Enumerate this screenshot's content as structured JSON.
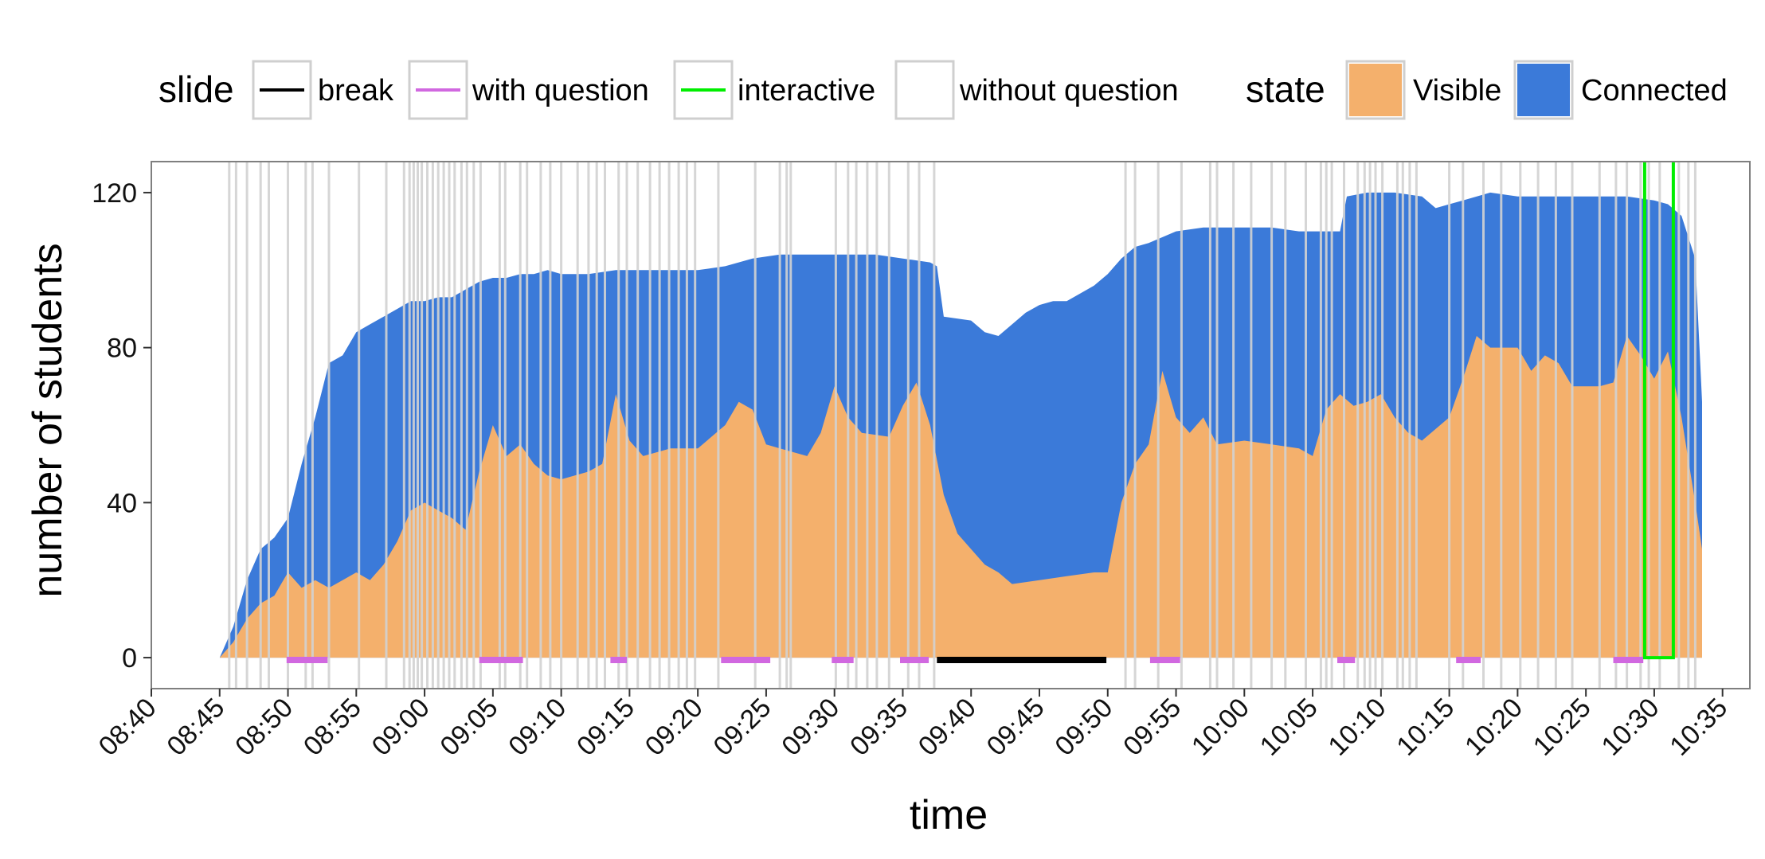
{
  "chart_data": {
    "type": "area",
    "xlabel": "time",
    "ylabel": "number of students",
    "xlim": [
      "08:40",
      "10:37"
    ],
    "ylim": [
      -8,
      128
    ],
    "x_ticks": [
      "08:40",
      "08:45",
      "08:50",
      "08:55",
      "09:00",
      "09:05",
      "09:10",
      "09:15",
      "09:20",
      "09:25",
      "09:30",
      "09:35",
      "09:40",
      "09:45",
      "09:50",
      "09:55",
      "10:00",
      "10:05",
      "10:10",
      "10:15",
      "10:20",
      "10:25",
      "10:30",
      "10:35"
    ],
    "y_ticks": [
      0,
      40,
      80,
      120
    ],
    "grid": false,
    "legend": {
      "position": "top",
      "groups": [
        {
          "title": "slide",
          "entries": [
            {
              "label": "break",
              "color": "#000000",
              "kind": "line"
            },
            {
              "label": "with question",
              "color": "#d168e0",
              "kind": "line"
            },
            {
              "label": "interactive",
              "color": "#00ee00",
              "kind": "line"
            },
            {
              "label": "without question",
              "color": "#ffffff",
              "kind": "line"
            }
          ]
        },
        {
          "title": "state",
          "entries": [
            {
              "label": "Visible",
              "color": "#f4b06c",
              "kind": "fill"
            },
            {
              "label": "Connected",
              "color": "#3b7ad9",
              "kind": "fill"
            }
          ]
        }
      ]
    },
    "series": [
      {
        "name": "Connected",
        "color": "#3b7ad9",
        "points": [
          [
            "08:45",
            0
          ],
          [
            "08:46",
            8
          ],
          [
            "08:47",
            20
          ],
          [
            "08:48",
            28
          ],
          [
            "08:49",
            31
          ],
          [
            "08:50",
            36
          ],
          [
            "08:51",
            50
          ],
          [
            "08:52",
            62
          ],
          [
            "08:53",
            76
          ],
          [
            "08:54",
            78
          ],
          [
            "08:55",
            84
          ],
          [
            "08:56",
            86
          ],
          [
            "08:57",
            88
          ],
          [
            "08:58",
            90
          ],
          [
            "08:59",
            92
          ],
          [
            "09:00",
            92
          ],
          [
            "09:01",
            93
          ],
          [
            "09:02",
            93
          ],
          [
            "09:03",
            95
          ],
          [
            "09:04",
            97
          ],
          [
            "09:05",
            98
          ],
          [
            "09:06",
            98
          ],
          [
            "09:07",
            99
          ],
          [
            "09:08",
            99
          ],
          [
            "09:09",
            100
          ],
          [
            "09:10",
            99
          ],
          [
            "09:12",
            99
          ],
          [
            "09:14",
            100
          ],
          [
            "09:16",
            100
          ],
          [
            "09:20",
            100
          ],
          [
            "09:22",
            101
          ],
          [
            "09:24",
            103
          ],
          [
            "09:26",
            104
          ],
          [
            "09:30",
            104
          ],
          [
            "09:33",
            104
          ],
          [
            "09:35",
            103
          ],
          [
            "09:37",
            102
          ],
          [
            "09:37.5",
            101
          ],
          [
            "09:38",
            88
          ],
          [
            "09:40",
            87
          ],
          [
            "09:41",
            84
          ],
          [
            "09:42",
            83
          ],
          [
            "09:43",
            86
          ],
          [
            "09:44",
            89
          ],
          [
            "09:45",
            91
          ],
          [
            "09:46",
            92
          ],
          [
            "09:47",
            92
          ],
          [
            "09:48",
            94
          ],
          [
            "09:49",
            96
          ],
          [
            "09:50",
            99
          ],
          [
            "09:51",
            103
          ],
          [
            "09:52",
            106
          ],
          [
            "09:53",
            107
          ],
          [
            "09:55",
            110
          ],
          [
            "09:57",
            111
          ],
          [
            "10:00",
            111
          ],
          [
            "10:02",
            111
          ],
          [
            "10:04",
            110
          ],
          [
            "10:06",
            110
          ],
          [
            "10:07",
            110
          ],
          [
            "10:07.5",
            119
          ],
          [
            "10:09",
            120
          ],
          [
            "10:11",
            120
          ],
          [
            "10:13",
            119
          ],
          [
            "10:14",
            116
          ],
          [
            "10:16",
            118
          ],
          [
            "10:18",
            120
          ],
          [
            "10:20",
            119
          ],
          [
            "10:22",
            119
          ],
          [
            "10:24",
            119
          ],
          [
            "10:26",
            119
          ],
          [
            "10:28",
            119
          ],
          [
            "10:30",
            118
          ],
          [
            "10:31",
            117
          ],
          [
            "10:32",
            114
          ],
          [
            "10:33",
            103
          ],
          [
            "10:33.5",
            66
          ]
        ]
      },
      {
        "name": "Visible",
        "color": "#f4b06c",
        "points": [
          [
            "08:45",
            0
          ],
          [
            "08:46",
            4
          ],
          [
            "08:47",
            10
          ],
          [
            "08:48",
            14
          ],
          [
            "08:49",
            16
          ],
          [
            "08:50",
            22
          ],
          [
            "08:51",
            18
          ],
          [
            "08:52",
            20
          ],
          [
            "08:53",
            18
          ],
          [
            "08:54",
            20
          ],
          [
            "08:55",
            22
          ],
          [
            "08:56",
            20
          ],
          [
            "08:57",
            24
          ],
          [
            "08:58",
            30
          ],
          [
            "08:59",
            38
          ],
          [
            "09:00",
            40
          ],
          [
            "09:01",
            38
          ],
          [
            "09:02",
            36
          ],
          [
            "09:03",
            33
          ],
          [
            "09:04",
            48
          ],
          [
            "09:05",
            60
          ],
          [
            "09:06",
            52
          ],
          [
            "09:07",
            55
          ],
          [
            "09:08",
            50
          ],
          [
            "09:09",
            47
          ],
          [
            "09:10",
            46
          ],
          [
            "09:12",
            48
          ],
          [
            "09:13",
            50
          ],
          [
            "09:14",
            68
          ],
          [
            "09:15",
            56
          ],
          [
            "09:16",
            52
          ],
          [
            "09:18",
            54
          ],
          [
            "09:20",
            54
          ],
          [
            "09:22",
            60
          ],
          [
            "09:23",
            66
          ],
          [
            "09:24",
            64
          ],
          [
            "09:25",
            55
          ],
          [
            "09:26",
            54
          ],
          [
            "09:28",
            52
          ],
          [
            "09:29",
            58
          ],
          [
            "09:30",
            70
          ],
          [
            "09:31",
            62
          ],
          [
            "09:32",
            58
          ],
          [
            "09:34",
            57
          ],
          [
            "09:35",
            65
          ],
          [
            "09:36",
            71
          ],
          [
            "09:37",
            60
          ],
          [
            "09:38",
            42
          ],
          [
            "09:39",
            32
          ],
          [
            "09:40",
            28
          ],
          [
            "09:41",
            24
          ],
          [
            "09:42",
            22
          ],
          [
            "09:43",
            19
          ],
          [
            "09:45",
            20
          ],
          [
            "09:47",
            21
          ],
          [
            "09:49",
            22
          ],
          [
            "09:50",
            22
          ],
          [
            "09:51",
            40
          ],
          [
            "09:52",
            50
          ],
          [
            "09:53",
            55
          ],
          [
            "09:54",
            74
          ],
          [
            "09:55",
            62
          ],
          [
            "09:56",
            58
          ],
          [
            "09:57",
            62
          ],
          [
            "09:58",
            55
          ],
          [
            "10:00",
            56
          ],
          [
            "10:02",
            55
          ],
          [
            "10:04",
            54
          ],
          [
            "10:05",
            52
          ],
          [
            "10:06",
            64
          ],
          [
            "10:07",
            68
          ],
          [
            "10:08",
            65
          ],
          [
            "10:09",
            66
          ],
          [
            "10:10",
            68
          ],
          [
            "10:11",
            62
          ],
          [
            "10:12",
            58
          ],
          [
            "10:13",
            56
          ],
          [
            "10:15",
            62
          ],
          [
            "10:16",
            72
          ],
          [
            "10:17",
            83
          ],
          [
            "10:18",
            80
          ],
          [
            "10:20",
            80
          ],
          [
            "10:21",
            74
          ],
          [
            "10:22",
            78
          ],
          [
            "10:23",
            76
          ],
          [
            "10:24",
            70
          ],
          [
            "10:26",
            70
          ],
          [
            "10:27",
            71
          ],
          [
            "10:28",
            83
          ],
          [
            "10:29",
            78
          ],
          [
            "10:30",
            72
          ],
          [
            "10:31",
            79
          ],
          [
            "10:32",
            62
          ],
          [
            "10:33",
            40
          ],
          [
            "10:33.5",
            28
          ]
        ]
      }
    ],
    "slide_boundaries": [
      "08:45.7",
      "08:46.2",
      "08:47.0",
      "08:48.0",
      "08:48.6",
      "08:50.0",
      "08:51.3",
      "08:51.8",
      "08:53.0",
      "08:55.2",
      "08:57.2",
      "08:58.5",
      "08:58.9",
      "08:59.2",
      "08:59.5",
      "08:59.8",
      "09:00.2",
      "09:00.6",
      "09:01.0",
      "09:01.4",
      "09:01.8",
      "09:02.2",
      "09:02.7",
      "09:03.1",
      "09:03.6",
      "09:04.1",
      "09:05.5",
      "09:05.9",
      "09:07.0",
      "09:07.5",
      "09:08.5",
      "09:09.2",
      "09:10.0",
      "09:11.2",
      "09:12.0",
      "09:12.6",
      "09:13.2",
      "09:14.2",
      "09:14.8",
      "09:15.6",
      "09:16.5",
      "09:17.2",
      "09:17.9",
      "09:18.6",
      "09:19.2",
      "09:19.8",
      "09:21.5",
      "09:24.2",
      "09:26.0",
      "09:26.5",
      "09:26.8",
      "09:30.1",
      "09:31.0",
      "09:31.6",
      "09:32.4",
      "09:33.1",
      "09:34.0",
      "09:35.4",
      "09:36.2",
      "09:37.3",
      "09:51.3",
      "09:52.0",
      "09:53.7",
      "09:55.4",
      "09:57.5",
      "09:58.0",
      "09:59.2",
      "10:00.5",
      "10:02.0",
      "10:03.0",
      "10:04.5",
      "10:05.6",
      "10:06.0",
      "10:06.4",
      "10:07.3",
      "10:08.3",
      "10:08.8",
      "10:09.2",
      "10:09.6",
      "10:10.1",
      "10:11.2",
      "10:11.6",
      "10:12.1",
      "10:12.6",
      "10:15.0",
      "10:16.0",
      "10:17.5",
      "10:18.8",
      "10:20.2",
      "10:21.5",
      "10:22.8",
      "10:24.0",
      "10:26.0",
      "10:27.2",
      "10:28.0",
      "10:29.0",
      "10:29.6",
      "10:30.4",
      "10:31.8",
      "10:32.5",
      "10:33.0"
    ],
    "slide_segments": [
      {
        "type": "with question",
        "start": "08:49.9",
        "end": "08:52.9"
      },
      {
        "type": "with question",
        "start": "09:04.0",
        "end": "09:07.2"
      },
      {
        "type": "with question",
        "start": "09:13.6",
        "end": "09:14.8"
      },
      {
        "type": "with question",
        "start": "09:21.7",
        "end": "09:25.3"
      },
      {
        "type": "with question",
        "start": "09:29.8",
        "end": "09:31.4"
      },
      {
        "type": "with question",
        "start": "09:34.8",
        "end": "09:36.9"
      },
      {
        "type": "break",
        "start": "09:37.5",
        "end": "09:49.9"
      },
      {
        "type": "with question",
        "start": "09:53.1",
        "end": "09:55.3"
      },
      {
        "type": "with question",
        "start": "10:06.8",
        "end": "10:08.1"
      },
      {
        "type": "with question",
        "start": "10:15.5",
        "end": "10:17.3"
      },
      {
        "type": "with question",
        "start": "10:27.0",
        "end": "10:29.2"
      },
      {
        "type": "interactive",
        "start": "10:29.3",
        "end": "10:31.4"
      }
    ]
  }
}
